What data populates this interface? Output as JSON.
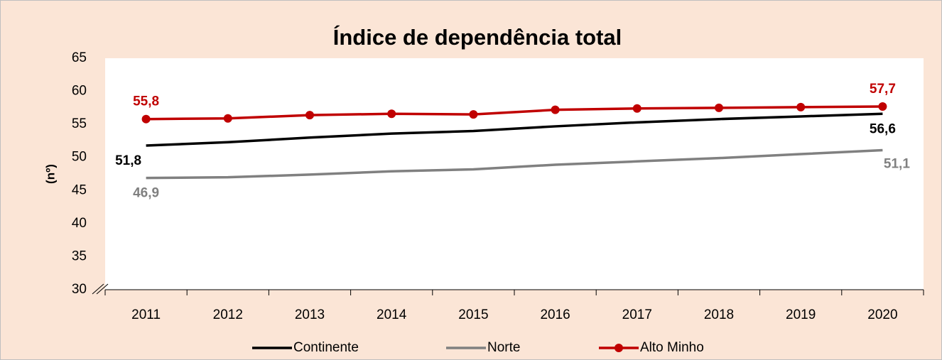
{
  "chart_data": {
    "type": "line",
    "title": "Índice de dependência total",
    "y_label": "(nº)",
    "categories": [
      "2011",
      "2012",
      "2013",
      "2014",
      "2015",
      "2016",
      "2017",
      "2018",
      "2019",
      "2020"
    ],
    "series": [
      {
        "name": "Continente",
        "color": "#000000",
        "values": [
          51.8,
          52.3,
          53.0,
          53.6,
          54.0,
          54.7,
          55.3,
          55.8,
          56.2,
          56.6
        ],
        "value_labels": [
          "51,8",
          null,
          null,
          null,
          null,
          null,
          null,
          null,
          null,
          "56,6"
        ]
      },
      {
        "name": "Norte",
        "color": "#808080",
        "values": [
          46.9,
          47.0,
          47.4,
          47.9,
          48.2,
          48.9,
          49.4,
          49.9,
          50.5,
          51.1
        ],
        "value_labels": [
          "46,9",
          null,
          null,
          null,
          null,
          null,
          null,
          null,
          null,
          "51,1"
        ]
      },
      {
        "name": "Alto Minho",
        "color": "#c00000",
        "markers": true,
        "values": [
          55.8,
          55.9,
          56.4,
          56.6,
          56.5,
          57.2,
          57.4,
          57.5,
          57.6,
          57.7
        ],
        "value_labels": [
          "55,8",
          null,
          null,
          null,
          null,
          null,
          null,
          null,
          null,
          "57,7"
        ]
      }
    ],
    "ylim": [
      30,
      65
    ],
    "yticks": [
      30,
      35,
      40,
      45,
      50,
      55,
      60,
      65
    ],
    "grid": false,
    "legend": "bottom"
  }
}
